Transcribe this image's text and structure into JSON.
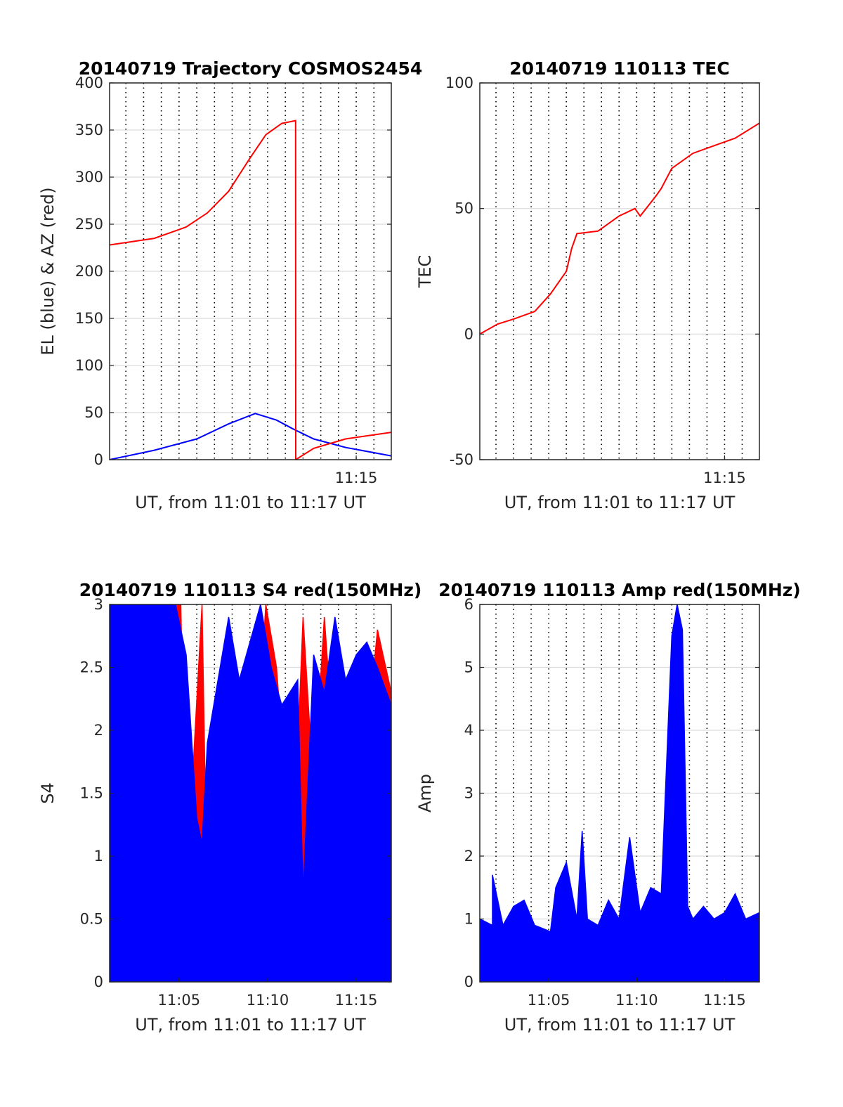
{
  "figure": {
    "background": "#ffffff"
  },
  "chart_data": [
    {
      "type": "line",
      "title": "20140719 Trajectory COSMOS2454",
      "xlabel": "UT, from 11:01 to 11:17 UT",
      "ylabel": "EL (blue) & AZ (red)",
      "xlim": [
        11.018,
        11.283
      ],
      "ylim": [
        0,
        400
      ],
      "yticks": [
        0,
        50,
        100,
        150,
        200,
        250,
        300,
        350,
        400
      ],
      "xticks": [
        {
          "value": 11.25,
          "label": "11:15"
        }
      ],
      "grid": true,
      "series": [
        {
          "color": "#0000ff",
          "x": [
            11.018,
            11.06,
            11.1,
            11.13,
            11.155,
            11.175,
            11.19,
            11.21,
            11.24,
            11.283
          ],
          "y": [
            0,
            10,
            22,
            38,
            49,
            42,
            33,
            22,
            13,
            4
          ]
        },
        {
          "color": "#ff0000",
          "x": [
            11.018,
            11.06,
            11.09,
            11.11,
            11.13,
            11.15,
            11.165,
            11.18,
            11.193,
            11.1931,
            11.21,
            11.24,
            11.283
          ],
          "y": [
            228,
            235,
            247,
            262,
            285,
            320,
            345,
            357,
            360,
            0,
            12,
            22,
            29
          ]
        }
      ]
    },
    {
      "type": "line",
      "title": "20140719 110113 TEC",
      "xlabel": "UT, from 11:01 to 11:17 UT",
      "ylabel": "TEC",
      "xlim": [
        11.018,
        11.283
      ],
      "ylim": [
        -50,
        100
      ],
      "yticks": [
        -50,
        0,
        50,
        100
      ],
      "xticks": [
        {
          "value": 11.25,
          "label": "11:15"
        }
      ],
      "grid": true,
      "series": [
        {
          "color": "#ff0000",
          "x": [
            11.018,
            11.035,
            11.05,
            11.07,
            11.085,
            11.1,
            11.105,
            11.11,
            11.13,
            11.15,
            11.165,
            11.17,
            11.185,
            11.19,
            11.2,
            11.22,
            11.24,
            11.26,
            11.283
          ],
          "y": [
            0,
            4,
            6,
            9,
            16,
            25,
            34,
            40,
            41,
            47,
            50,
            47,
            55,
            58,
            66,
            72,
            75,
            78,
            84
          ]
        }
      ]
    },
    {
      "type": "area",
      "title": "20140719 110113 S4 red(150MHz)",
      "xlabel": "UT, from 11:01 to 11:17 UT",
      "ylabel": "S4",
      "xlim": [
        11.018,
        11.283
      ],
      "ylim": [
        0,
        3
      ],
      "yticks": [
        0,
        0.5,
        1,
        1.5,
        2,
        2.5,
        3
      ],
      "xticks": [
        {
          "value": 11.0833,
          "label": "11:05"
        },
        {
          "value": 11.1667,
          "label": "11:10"
        },
        {
          "value": 11.25,
          "label": "11:15"
        }
      ],
      "grid": true,
      "series": [
        {
          "color": "#ff0000",
          "x": [
            11.018,
            11.045,
            11.05,
            11.07,
            11.085,
            11.09,
            11.105,
            11.11,
            11.13,
            11.145,
            11.165,
            11.175,
            11.19,
            11.2,
            11.21,
            11.22,
            11.23,
            11.24,
            11.25,
            11.26,
            11.27,
            11.283
          ],
          "y": [
            3,
            3,
            0.1,
            3,
            3,
            0.7,
            3,
            0.5,
            0.1,
            0.2,
            3,
            2.5,
            0.8,
            2.9,
            1.5,
            2.9,
            1.7,
            2.2,
            1.3,
            1.9,
            2.8,
            2.3
          ]
        },
        {
          "color": "#0000ff",
          "x": [
            11.018,
            11.05,
            11.08,
            11.09,
            11.1,
            11.105,
            11.11,
            11.13,
            11.14,
            11.16,
            11.17,
            11.18,
            11.195,
            11.2,
            11.21,
            11.22,
            11.23,
            11.24,
            11.25,
            11.26,
            11.27,
            11.283
          ],
          "y": [
            3,
            3,
            3,
            2.6,
            1.3,
            1.1,
            1.9,
            2.9,
            2.4,
            3,
            2.5,
            2.2,
            2.4,
            0.7,
            2.6,
            2.3,
            2.9,
            2.4,
            2.6,
            2.7,
            2.5,
            2.2
          ]
        }
      ]
    },
    {
      "type": "area",
      "title": "20140719 110113 Amp red(150MHz)",
      "xlabel": "UT, from 11:01 to 11:17 UT",
      "ylabel": "Amp",
      "xlim": [
        11.018,
        11.283
      ],
      "ylim": [
        0,
        6
      ],
      "yticks": [
        0,
        1,
        2,
        3,
        4,
        5,
        6
      ],
      "xticks": [
        {
          "value": 11.0833,
          "label": "11:05"
        },
        {
          "value": 11.1667,
          "label": "11:10"
        },
        {
          "value": 11.25,
          "label": "11:15"
        }
      ],
      "grid": true,
      "series": [
        {
          "color": "#0000ff",
          "x": [
            11.018,
            11.03,
            11.03,
            11.04,
            11.05,
            11.06,
            11.07,
            11.085,
            11.09,
            11.1,
            11.11,
            11.115,
            11.12,
            11.13,
            11.135,
            11.14,
            11.15,
            11.16,
            11.17,
            11.18,
            11.19,
            11.2,
            11.205,
            11.21,
            11.215,
            11.22,
            11.23,
            11.24,
            11.25,
            11.26,
            11.27,
            11.283
          ],
          "y": [
            1.0,
            0.9,
            1.7,
            0.9,
            1.2,
            1.3,
            0.9,
            0.8,
            1.5,
            1.9,
            1.0,
            2.4,
            1.0,
            0.9,
            1.1,
            1.3,
            1.0,
            2.3,
            1.1,
            1.5,
            1.4,
            5.5,
            6.0,
            5.6,
            1.2,
            1.0,
            1.2,
            1.0,
            1.1,
            1.4,
            1.0,
            1.1
          ]
        }
      ]
    }
  ]
}
